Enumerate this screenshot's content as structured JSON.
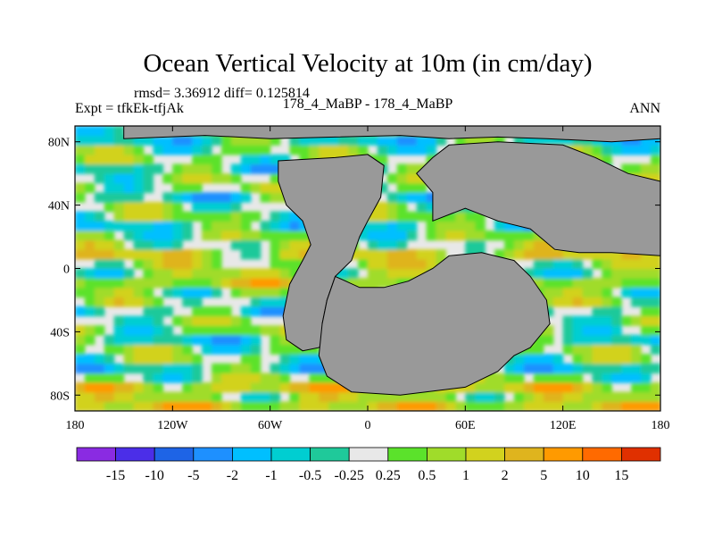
{
  "header": {
    "title": "Ocean Vertical Velocity at 10m (in cm/day)",
    "stats": "rmsd= 3.36912 diff= 0.125814",
    "left": "Expt = tfkEk-tfjAk",
    "center": "178_4_MaBP - 178_4_MaBP",
    "right": "ANN"
  },
  "colors": {
    "land": "#999999",
    "palette": [
      "#8a2be2",
      "#4b2ee8",
      "#1e64e6",
      "#1e90ff",
      "#00bfff",
      "#00ced1",
      "#1fc99a",
      "#e8e8e8",
      "#5be22b",
      "#a0dc2a",
      "#d2d21e",
      "#dfb41e",
      "#ff9a00",
      "#ff6a00",
      "#e03000"
    ]
  },
  "chart_data": {
    "type": "heatmap",
    "title": "Ocean Vertical Velocity at 10m (in cm/day)",
    "subtitle": "rmsd= 3.36912 diff= 0.125814",
    "projection": "cylindrical equidistant",
    "xlim": [
      -180,
      180
    ],
    "ylim": [
      -90,
      90
    ],
    "x_ticks": [
      {
        "value": -180,
        "label": "180"
      },
      {
        "value": -120,
        "label": "120W"
      },
      {
        "value": -60,
        "label": "60W"
      },
      {
        "value": 0,
        "label": "0"
      },
      {
        "value": 60,
        "label": "60E"
      },
      {
        "value": 120,
        "label": "120E"
      },
      {
        "value": 180,
        "label": "180"
      }
    ],
    "y_ticks": [
      {
        "value": 80,
        "label": "80N"
      },
      {
        "value": 40,
        "label": "40N"
      },
      {
        "value": 0,
        "label": "0"
      },
      {
        "value": -40,
        "label": "40S"
      },
      {
        "value": -80,
        "label": "80S"
      }
    ],
    "colorbar": {
      "levels": [
        "-15",
        "-10",
        "-5",
        "-2",
        "-1",
        "-0.5",
        "-0.25",
        "0.25",
        "0.5",
        "1",
        "2",
        "5",
        "10",
        "15"
      ],
      "bins": 15
    },
    "land_mask_regions": [
      {
        "name": "north-polar-land",
        "lon": [
          -150,
          180
        ],
        "lat": [
          78,
          90
        ]
      },
      {
        "name": "western-supercontinent",
        "lon": [
          -55,
          10
        ],
        "lat": [
          -52,
          68
        ]
      },
      {
        "name": "southern-supercontinent",
        "lon": [
          -30,
          112
        ],
        "lat": [
          -80,
          15
        ]
      },
      {
        "name": "eastern-supercontinent",
        "lon": [
          40,
          180
        ],
        "lat": [
          5,
          78
        ]
      }
    ]
  }
}
